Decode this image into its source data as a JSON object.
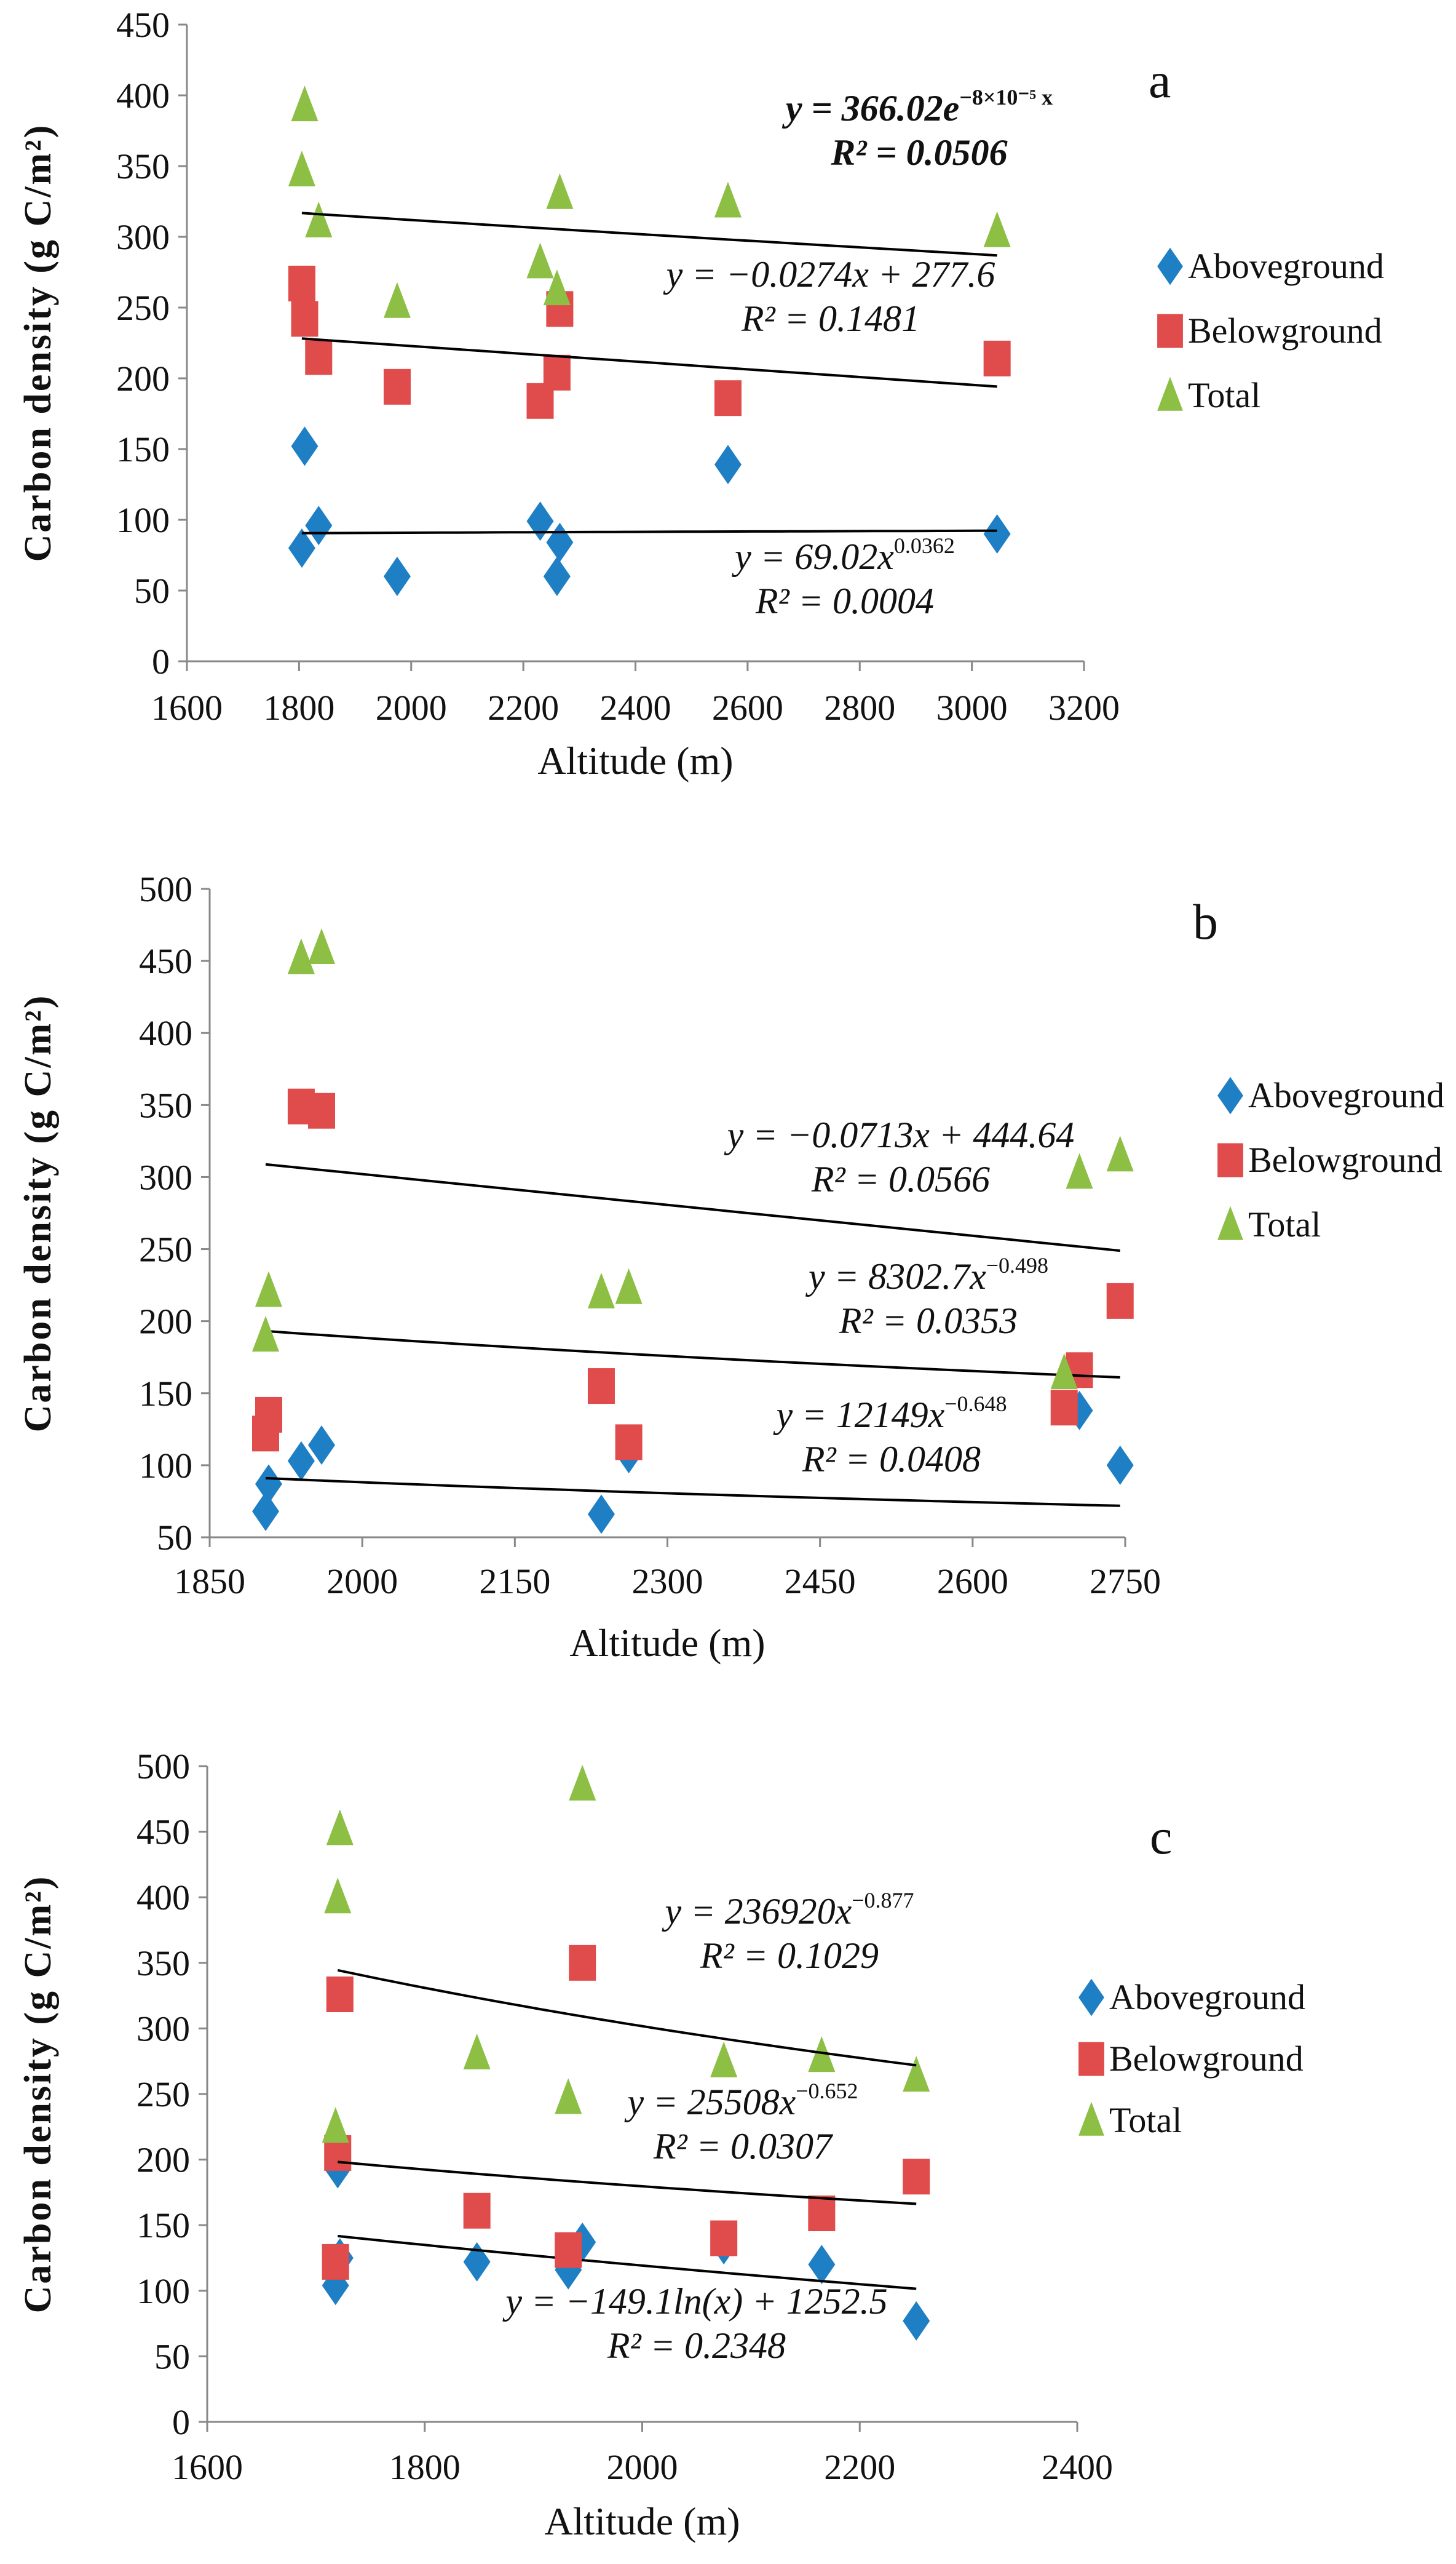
{
  "chart_data": [
    {
      "panel": "a",
      "type": "scatter",
      "xlabel": "Altitude (m)",
      "ylabel": "Carbon density (g C/m²)",
      "xlim": [
        1600,
        3200
      ],
      "ylim": [
        0,
        450
      ],
      "x_ticks": [
        "1600",
        "1800",
        "2000",
        "2200",
        "2400",
        "2600",
        "2800",
        "3000",
        "3200"
      ],
      "y_ticks": [
        "0",
        "50",
        "100",
        "150",
        "200",
        "250",
        "300",
        "350",
        "400",
        "450"
      ],
      "legend": [
        "Aboveground",
        "Belowground",
        "Total"
      ],
      "legend_position": "right",
      "series": [
        {
          "name": "Aboveground",
          "marker": "diamond",
          "color": "#1f7fc4",
          "points": [
            [
              1805,
              80
            ],
            [
              1810,
              152
            ],
            [
              1835,
              96
            ],
            [
              1975,
              60
            ],
            [
              2230,
              99
            ],
            [
              2260,
              60
            ],
            [
              2265,
              84
            ],
            [
              2565,
              139
            ],
            [
              3045,
              90
            ]
          ],
          "trend": {
            "model": "power",
            "a": 69.02,
            "b": 0.0362,
            "range": [
              1805,
              3045
            ]
          },
          "equation": {
            "pre": "y = 69.02x",
            "sup": "0.0362",
            "post": "",
            "r2": "R² = 0.0004"
          }
        },
        {
          "name": "Belowground",
          "marker": "square",
          "color": "#e04b4b",
          "points": [
            [
              1805,
              267
            ],
            [
              1810,
              242
            ],
            [
              1835,
              215
            ],
            [
              1975,
              194
            ],
            [
              2230,
              184
            ],
            [
              2260,
              204
            ],
            [
              2265,
              249
            ],
            [
              2565,
              186
            ],
            [
              3045,
              214
            ]
          ],
          "trend": {
            "model": "linear",
            "a": -0.0274,
            "b": 277.6,
            "range": [
              1805,
              3045
            ]
          },
          "equation": {
            "pre": "y = −0.0274x + 277.6",
            "sup": "",
            "post": "",
            "r2": "R² = 0.1481"
          }
        },
        {
          "name": "Total",
          "marker": "triangle",
          "color": "#8cbf44",
          "points": [
            [
              1805,
              347
            ],
            [
              1810,
              393
            ],
            [
              1835,
              311
            ],
            [
              1975,
              254
            ],
            [
              2230,
              282
            ],
            [
              2260,
              263
            ],
            [
              2265,
              331
            ],
            [
              2565,
              325
            ],
            [
              3045,
              304
            ]
          ],
          "trend": {
            "model": "exp",
            "a": 366.02,
            "b": -8e-05,
            "range": [
              1805,
              3045
            ]
          },
          "equation": {
            "pre": "y = 366.02e",
            "sup": "−8×10⁻⁵ x",
            "post": "",
            "r2": "R² = 0.0506"
          }
        }
      ]
    },
    {
      "panel": "b",
      "type": "scatter",
      "xlabel": "Altitude (m)",
      "ylabel": "Carbon density (g C/m²)",
      "xlim": [
        1850,
        2750
      ],
      "ylim": [
        50,
        500
      ],
      "x_ticks": [
        "1850",
        "2000",
        "2150",
        "2300",
        "2450",
        "2600",
        "2750"
      ],
      "y_ticks": [
        "50",
        "100",
        "150",
        "200",
        "250",
        "300",
        "350",
        "400",
        "450",
        "500"
      ],
      "legend": [
        "Aboveground",
        "Belowground",
        "Total"
      ],
      "legend_position": "right",
      "series": [
        {
          "name": "Aboveground",
          "marker": "diamond",
          "color": "#1f7fc4",
          "points": [
            [
              1905,
              68
            ],
            [
              1908,
              87
            ],
            [
              1940,
              103
            ],
            [
              1960,
              114
            ],
            [
              2235,
              66
            ],
            [
              2262,
              108
            ],
            [
              2705,
              138
            ],
            [
              2745,
              100
            ]
          ],
          "trend": {
            "model": "power",
            "a": 12149,
            "b": -0.648,
            "range": [
              1905,
              2745
            ]
          },
          "equation": {
            "pre": "y = 12149x",
            "sup": "−0.648",
            "post": "",
            "r2": "R² = 0.0408"
          }
        },
        {
          "name": "Belowground",
          "marker": "square",
          "color": "#e04b4b",
          "points": [
            [
              1905,
              122
            ],
            [
              1908,
              135
            ],
            [
              1940,
              349
            ],
            [
              1960,
              346
            ],
            [
              2235,
              155
            ],
            [
              2262,
              116
            ],
            [
              2690,
              140
            ],
            [
              2705,
              166
            ],
            [
              2745,
              214
            ]
          ],
          "trend": {
            "model": "power",
            "a": 8302.7,
            "b": -0.498,
            "range": [
              1905,
              2745
            ]
          },
          "equation": {
            "pre": "y = 8302.7x",
            "sup": "−0.498",
            "post": "",
            "r2": "R² = 0.0353"
          }
        },
        {
          "name": "Total",
          "marker": "triangle",
          "color": "#8cbf44",
          "points": [
            [
              1905,
              190
            ],
            [
              1908,
              221
            ],
            [
              1940,
              452
            ],
            [
              1960,
              459
            ],
            [
              2235,
              220
            ],
            [
              2262,
              223
            ],
            [
              2690,
              164
            ],
            [
              2705,
              303
            ],
            [
              2745,
              315
            ]
          ],
          "trend": {
            "model": "linear",
            "a": -0.0713,
            "b": 444.64,
            "range": [
              1905,
              2745
            ]
          },
          "equation": {
            "pre": "y = −0.0713x + 444.64",
            "sup": "",
            "post": "",
            "r2": "R² = 0.0566"
          }
        }
      ]
    },
    {
      "panel": "c",
      "type": "scatter",
      "xlabel": "Altitude (m)",
      "ylabel": "Carbon density (g C/m²)",
      "xlim": [
        1600,
        2400
      ],
      "ylim": [
        0,
        500
      ],
      "x_ticks": [
        "1600",
        "1800",
        "2000",
        "2200",
        "2400"
      ],
      "y_ticks": [
        "0",
        "50",
        "100",
        "150",
        "200",
        "250",
        "300",
        "350",
        "400",
        "450",
        "500"
      ],
      "legend": [
        "Aboveground",
        "Belowground",
        "Total"
      ],
      "legend_position": "right",
      "series": [
        {
          "name": "Aboveground",
          "marker": "diamond",
          "color": "#1f7fc4",
          "points": [
            [
              1718,
              104
            ],
            [
              1720,
              193
            ],
            [
              1722,
              125
            ],
            [
              1848,
              122
            ],
            [
              1932,
              116
            ],
            [
              1945,
              137
            ],
            [
              2075,
              135
            ],
            [
              2165,
              120
            ],
            [
              2252,
              77
            ]
          ],
          "trend": {
            "model": "log",
            "a": -149.1,
            "b": 1252.5,
            "range": [
              1720,
              2252
            ]
          },
          "equation": {
            "pre": "y = −149.1ln(x) + 1252.5",
            "sup": "",
            "post": "",
            "r2": "R² = 0.2348"
          }
        },
        {
          "name": "Belowground",
          "marker": "square",
          "color": "#e04b4b",
          "points": [
            [
              1718,
              122
            ],
            [
              1720,
              205
            ],
            [
              1722,
              326
            ],
            [
              1848,
              161
            ],
            [
              1932,
              131
            ],
            [
              1945,
              350
            ],
            [
              2075,
              140
            ],
            [
              2165,
              159
            ],
            [
              2252,
              187
            ]
          ],
          "trend": {
            "model": "power",
            "a": 25508,
            "b": -0.652,
            "range": [
              1720,
              2252
            ]
          },
          "equation": {
            "pre": "y = 25508x",
            "sup": "−0.652",
            "post": "",
            "r2": "R² = 0.0307"
          }
        },
        {
          "name": "Total",
          "marker": "triangle",
          "color": "#8cbf44",
          "points": [
            [
              1718,
              225
            ],
            [
              1720,
              400
            ],
            [
              1722,
              452
            ],
            [
              1848,
              281
            ],
            [
              1932,
              247
            ],
            [
              1945,
              486
            ],
            [
              2075,
              275
            ],
            [
              2165,
              279
            ],
            [
              2252,
              264
            ]
          ],
          "trend": {
            "model": "power",
            "a": 236920,
            "b": -0.877,
            "range": [
              1720,
              2252
            ]
          },
          "equation": {
            "pre": "y = 236920x",
            "sup": "−0.877",
            "post": "",
            "r2": "R² = 0.1029"
          }
        }
      ]
    }
  ]
}
